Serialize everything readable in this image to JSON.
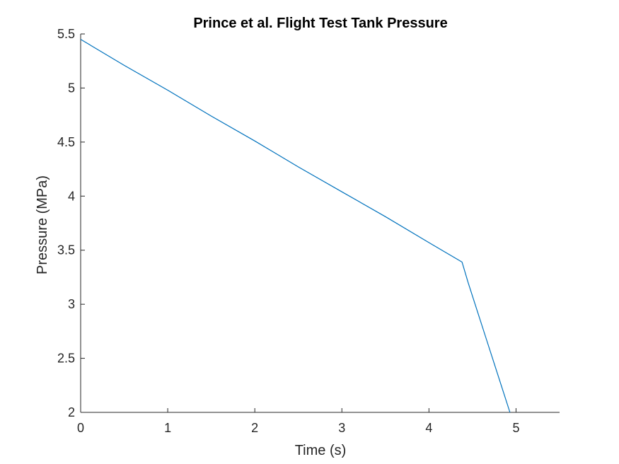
{
  "chart_data": {
    "type": "line",
    "title": "Prince et al. Flight Test Tank Pressure",
    "xlabel": "Time (s)",
    "ylabel": "Pressure (MPa)",
    "xlim": [
      0,
      5.5
    ],
    "ylim": [
      2,
      5.5
    ],
    "xticks": [
      0,
      1,
      2,
      3,
      4,
      5
    ],
    "xtick_labels": [
      "0",
      "1",
      "2",
      "3",
      "4",
      "5"
    ],
    "yticks": [
      2,
      2.5,
      3,
      3.5,
      4,
      4.5,
      5,
      5.5
    ],
    "ytick_labels": [
      "2",
      "2.5",
      "3",
      "3.5",
      "4",
      "4.5",
      "5",
      "5.5"
    ],
    "grid": false,
    "series": [
      {
        "color": "#0072BD",
        "x": [
          0,
          0.5,
          1.0,
          1.5,
          2.0,
          2.5,
          3.0,
          3.5,
          4.0,
          4.38,
          4.45,
          4.55,
          4.65,
          4.75,
          4.85,
          4.93
        ],
        "y": [
          5.45,
          5.21,
          4.98,
          4.74,
          4.51,
          4.27,
          4.04,
          3.81,
          3.57,
          3.39,
          3.2,
          2.95,
          2.7,
          2.45,
          2.2,
          2.0
        ]
      }
    ]
  }
}
